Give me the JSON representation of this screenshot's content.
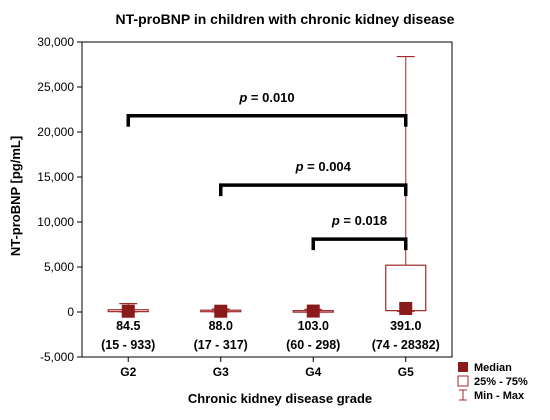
{
  "chart_data": {
    "type": "box",
    "title": "NT-proBNP in children with chronic kidney disease",
    "xlabel": "Chronic kidney disease grade",
    "ylabel": "NT-proBNP [pg/mL]",
    "ylim": [
      -5000,
      30000
    ],
    "y_ticks": [
      -5000,
      0,
      5000,
      10000,
      15000,
      20000,
      25000,
      30000
    ],
    "y_tick_labels": [
      "-5,000",
      "0",
      "5,000",
      "10,000",
      "15,000",
      "20,000",
      "25,000",
      "30,000"
    ],
    "categories": [
      "G2",
      "G3",
      "G4",
      "G5"
    ],
    "groups": [
      {
        "category": "G2",
        "median": 84.5,
        "q1": 40,
        "q3": 250,
        "min": 15,
        "max": 933,
        "label_median": "84.5",
        "label_range": "(15 - 933)"
      },
      {
        "category": "G3",
        "median": 88.0,
        "q1": 45,
        "q3": 200,
        "min": 17,
        "max": 317,
        "label_median": "88.0",
        "label_range": "(17 - 317)"
      },
      {
        "category": "G4",
        "median": 103.0,
        "q1": 70,
        "q3": 150,
        "min": 60,
        "max": 298,
        "label_median": "103.0",
        "label_range": "(60 - 298)"
      },
      {
        "category": "G5",
        "median": 391.0,
        "q1": 150,
        "q3": 5200,
        "min": 74,
        "max": 28382,
        "label_median": "391.0",
        "label_range": "(74 - 28382)"
      }
    ],
    "comparisons": [
      {
        "from": "G2",
        "to": "G5",
        "y": 21800,
        "p_prefix": "p",
        "p_value": "= 0.010"
      },
      {
        "from": "G3",
        "to": "G5",
        "y": 14100,
        "p_prefix": "p",
        "p_value": "= 0.004"
      },
      {
        "from": "G4",
        "to": "G5",
        "y": 8100,
        "p_prefix": "p",
        "p_value": "= 0.018"
      }
    ],
    "legend": {
      "placement": "bottom-right",
      "items": [
        {
          "key": "median",
          "label": "Median"
        },
        {
          "key": "box",
          "label": "25% - 75%"
        },
        {
          "key": "whisker",
          "label": "Min - Max"
        }
      ]
    },
    "colors": {
      "median": "#8b1a1a",
      "box": "#a0282a",
      "bracket": "#000000",
      "axis": "#000000"
    }
  }
}
